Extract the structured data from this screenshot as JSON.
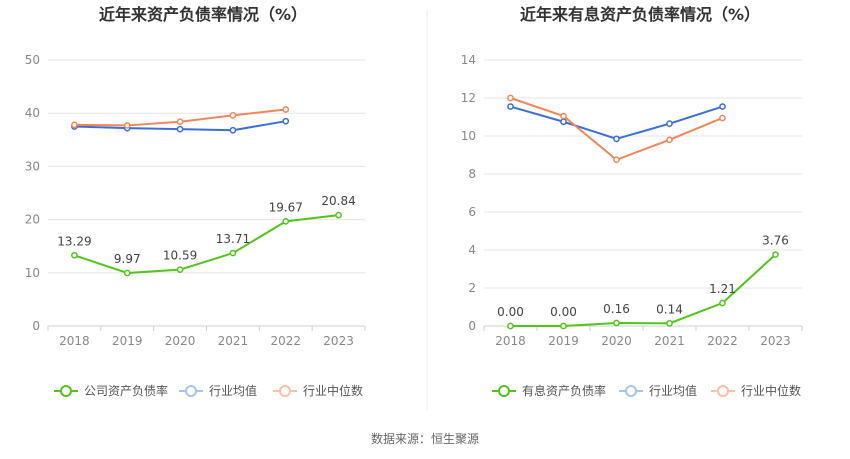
{
  "source": "数据来源：恒生聚源",
  "chart_data": [
    {
      "type": "line",
      "title": "近年来资产负债率情况（%）",
      "categories": [
        "2018",
        "2019",
        "2020",
        "2021",
        "2022",
        "2023"
      ],
      "ylim": [
        0,
        50
      ],
      "yticks": [
        0,
        10,
        20,
        30,
        40,
        50
      ],
      "grid": true,
      "legend_position": "bottom",
      "series": [
        {
          "name": "公司资产负债率",
          "color": "#52c41a",
          "values": [
            13.29,
            9.97,
            10.59,
            13.71,
            19.67,
            20.84
          ],
          "labels": [
            "13.29",
            "9.97",
            "10.59",
            "13.71",
            "19.67",
            "20.84"
          ]
        },
        {
          "name": "行业均值",
          "color": "#3b6fd6",
          "values": [
            37.5,
            37.2,
            37.0,
            36.8,
            38.5,
            null
          ]
        },
        {
          "name": "行业中位数",
          "color": "#f0875a",
          "values": [
            37.8,
            37.7,
            38.4,
            39.6,
            40.7,
            null
          ]
        }
      ]
    },
    {
      "type": "line",
      "title": "近年来有息资产负债率情况（%）",
      "categories": [
        "2018",
        "2019",
        "2020",
        "2021",
        "2022",
        "2023"
      ],
      "ylim": [
        0,
        14
      ],
      "yticks": [
        0,
        2,
        4,
        6,
        8,
        10,
        12,
        14
      ],
      "grid": true,
      "legend_position": "bottom",
      "series": [
        {
          "name": "有息资产负债率",
          "color": "#52c41a",
          "values": [
            0.0,
            0.0,
            0.16,
            0.14,
            1.21,
            3.76
          ],
          "labels": [
            "0.00",
            "0.00",
            "0.16",
            "0.14",
            "1.21",
            "3.76"
          ]
        },
        {
          "name": "行业均值",
          "color": "#3b6fd6",
          "values": [
            11.55,
            10.75,
            9.85,
            10.65,
            11.55,
            null
          ]
        },
        {
          "name": "行业中位数",
          "color": "#f0875a",
          "values": [
            12.0,
            11.05,
            8.75,
            9.8,
            10.95,
            null
          ]
        }
      ]
    }
  ]
}
